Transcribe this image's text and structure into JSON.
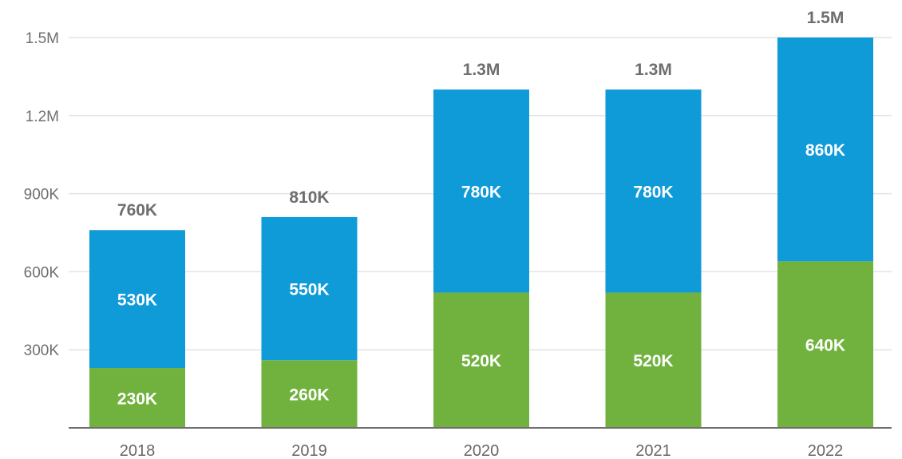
{
  "chart_data": {
    "type": "bar",
    "stacked": true,
    "title": "",
    "xlabel": "",
    "ylabel": "",
    "categories": [
      "2018",
      "2019",
      "2020",
      "2021",
      "2022"
    ],
    "series": [
      {
        "values": [
          230000,
          260000,
          520000,
          520000,
          640000
        ],
        "labels": [
          "230K",
          "260K",
          "520K",
          "520K",
          "640K"
        ],
        "color": "#71b23e"
      },
      {
        "values": [
          530000,
          550000,
          780000,
          780000,
          860000
        ],
        "labels": [
          "530K",
          "550K",
          "780K",
          "780K",
          "860K"
        ],
        "color": "#0f9ad8"
      }
    ],
    "totals": [
      760000,
      810000,
      1300000,
      1300000,
      1500000
    ],
    "total_labels": [
      "760K",
      "810K",
      "1.3M",
      "1.3M",
      "1.5M"
    ],
    "ylim": [
      0,
      1500000
    ],
    "yticks": [
      300000,
      600000,
      900000,
      1200000,
      1500000
    ],
    "ytick_labels": [
      "300K",
      "600K",
      "900K",
      "1.2M",
      "1.5M"
    ],
    "grid": true,
    "legend": "none",
    "gridline_color": "#e3e3e3",
    "axis_color": "#6f6f6f"
  }
}
